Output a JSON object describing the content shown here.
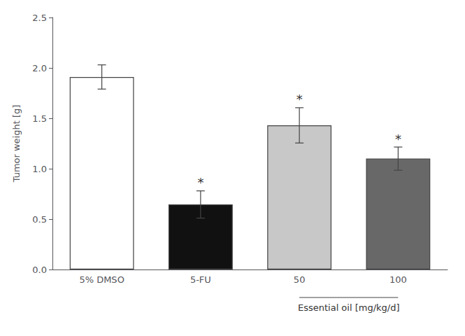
{
  "chart_data": {
    "type": "bar",
    "categories": [
      "5% DMSO",
      "5-FU",
      "50",
      "100"
    ],
    "values": [
      1.91,
      0.645,
      1.43,
      1.1
    ],
    "errors": [
      0.12,
      0.135,
      0.175,
      0.115
    ],
    "colors": [
      "#ffffff",
      "#111111",
      "#c8c8c8",
      "#686868"
    ],
    "ylabel": "Tumor weight [g]",
    "ylim": [
      0,
      2.5
    ],
    "yticks": [
      {
        "value": 0.0,
        "label": "0.0"
      },
      0.5,
      {
        "value": 1.0,
        "label": "1.0"
      },
      1.5,
      {
        "value": 2.0,
        "label": "2.0"
      },
      2.5
    ],
    "grid": false,
    "annotations": [
      {
        "category": "5-FU",
        "text": "*"
      },
      {
        "category": "50",
        "text": "*"
      },
      {
        "category": "100",
        "text": "*"
      },
      {
        "span": [
          "50",
          "100"
        ],
        "text": "Essential oil [mg/kg/d]"
      }
    ]
  }
}
